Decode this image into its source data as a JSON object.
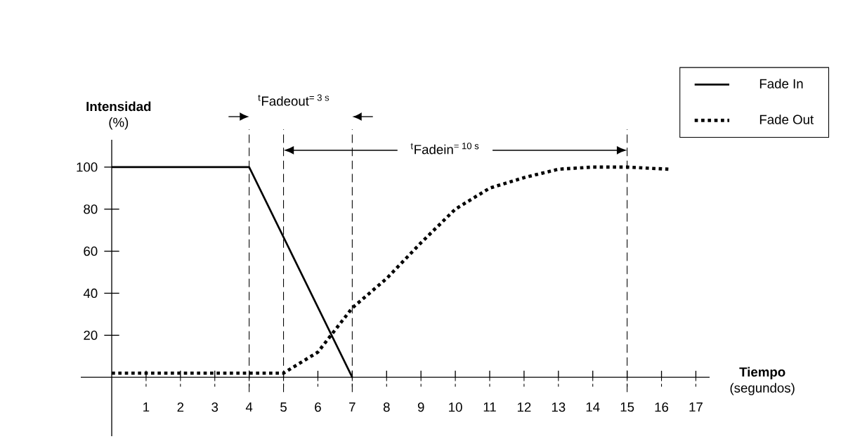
{
  "chart_data": {
    "type": "line",
    "ylabel": "**Intensidad** (%)",
    "xlabel": "**Tiempo** (segundos)",
    "xlim": [
      -0.9,
      17.4
    ],
    "ylim": [
      -28,
      113
    ],
    "xticks": [
      1,
      2,
      3,
      4,
      5,
      6,
      7,
      8,
      9,
      10,
      11,
      12,
      13,
      14,
      15,
      16,
      17
    ],
    "yticks": [
      20,
      40,
      60,
      80,
      100
    ],
    "series": [
      {
        "name": "Fade In",
        "color": "#000000",
        "line_style": "solid",
        "x": [
          0,
          4,
          7
        ],
        "values": [
          100,
          100,
          0
        ]
      },
      {
        "name": "Fade Out",
        "color": "#000000",
        "line_style": "dotted",
        "x": [
          0,
          5,
          6,
          7,
          8,
          9,
          10,
          11,
          12,
          13,
          14,
          15,
          16.2
        ],
        "values": [
          2,
          2,
          12,
          33,
          47,
          64,
          80,
          90,
          95,
          99,
          100,
          100,
          99
        ]
      }
    ],
    "ref_lines": [
      {
        "axis": "x",
        "value": 4,
        "line_style": "dashed"
      },
      {
        "axis": "x",
        "value": 5,
        "line_style": "dashed"
      },
      {
        "axis": "x",
        "value": 7,
        "line_style": "dashed"
      },
      {
        "axis": "x",
        "value": 15,
        "line_style": "dashed"
      }
    ],
    "annotations": [
      "$^{t}$Fadeout$^{= 3 s}$",
      "$^{t}$Fadein$^{= 10 s}$"
    ],
    "legend": "top right",
    "grid": false
  }
}
